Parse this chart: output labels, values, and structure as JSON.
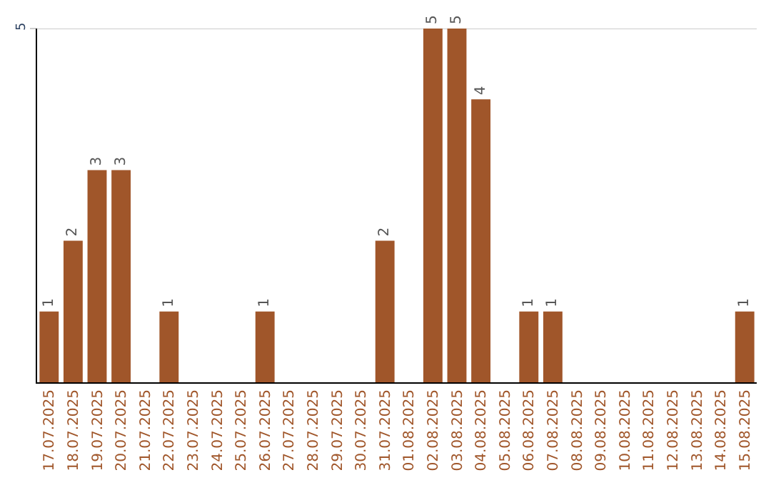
{
  "chart_data": {
    "type": "bar",
    "categories": [
      "17.07.2025",
      "18.07.2025",
      "19.07.2025",
      "20.07.2025",
      "21.07.2025",
      "22.07.2025",
      "23.07.2025",
      "24.07.2025",
      "25.07.2025",
      "26.07.2025",
      "27.07.2025",
      "28.07.2025",
      "29.07.2025",
      "30.07.2025",
      "31.07.2025",
      "01.08.2025",
      "02.08.2025",
      "03.08.2025",
      "04.08.2025",
      "05.08.2025",
      "06.08.2025",
      "07.08.2025",
      "08.08.2025",
      "09.08.2025",
      "10.08.2025",
      "11.08.2025",
      "12.08.2025",
      "13.08.2025",
      "14.08.2025",
      "15.08.2025"
    ],
    "values": [
      1,
      2,
      3,
      3,
      0,
      1,
      0,
      0,
      0,
      1,
      0,
      0,
      0,
      0,
      2,
      0,
      5,
      5,
      4,
      0,
      1,
      1,
      0,
      0,
      0,
      0,
      0,
      0,
      0,
      1
    ],
    "value_labels": [
      "1",
      "2",
      "3",
      "3",
      null,
      "1",
      null,
      null,
      null,
      "1",
      null,
      null,
      null,
      null,
      "2",
      null,
      "5",
      "5",
      "4",
      null,
      "1",
      "1",
      null,
      null,
      null,
      null,
      null,
      null,
      null,
      "1"
    ],
    "color": "#a0562a",
    "ylim": [
      0,
      5
    ],
    "yticks": [
      5
    ],
    "ref_lines": [
      {
        "axis": "y",
        "value": 5,
        "color": "#cccccc"
      }
    ],
    "legend": false
  }
}
